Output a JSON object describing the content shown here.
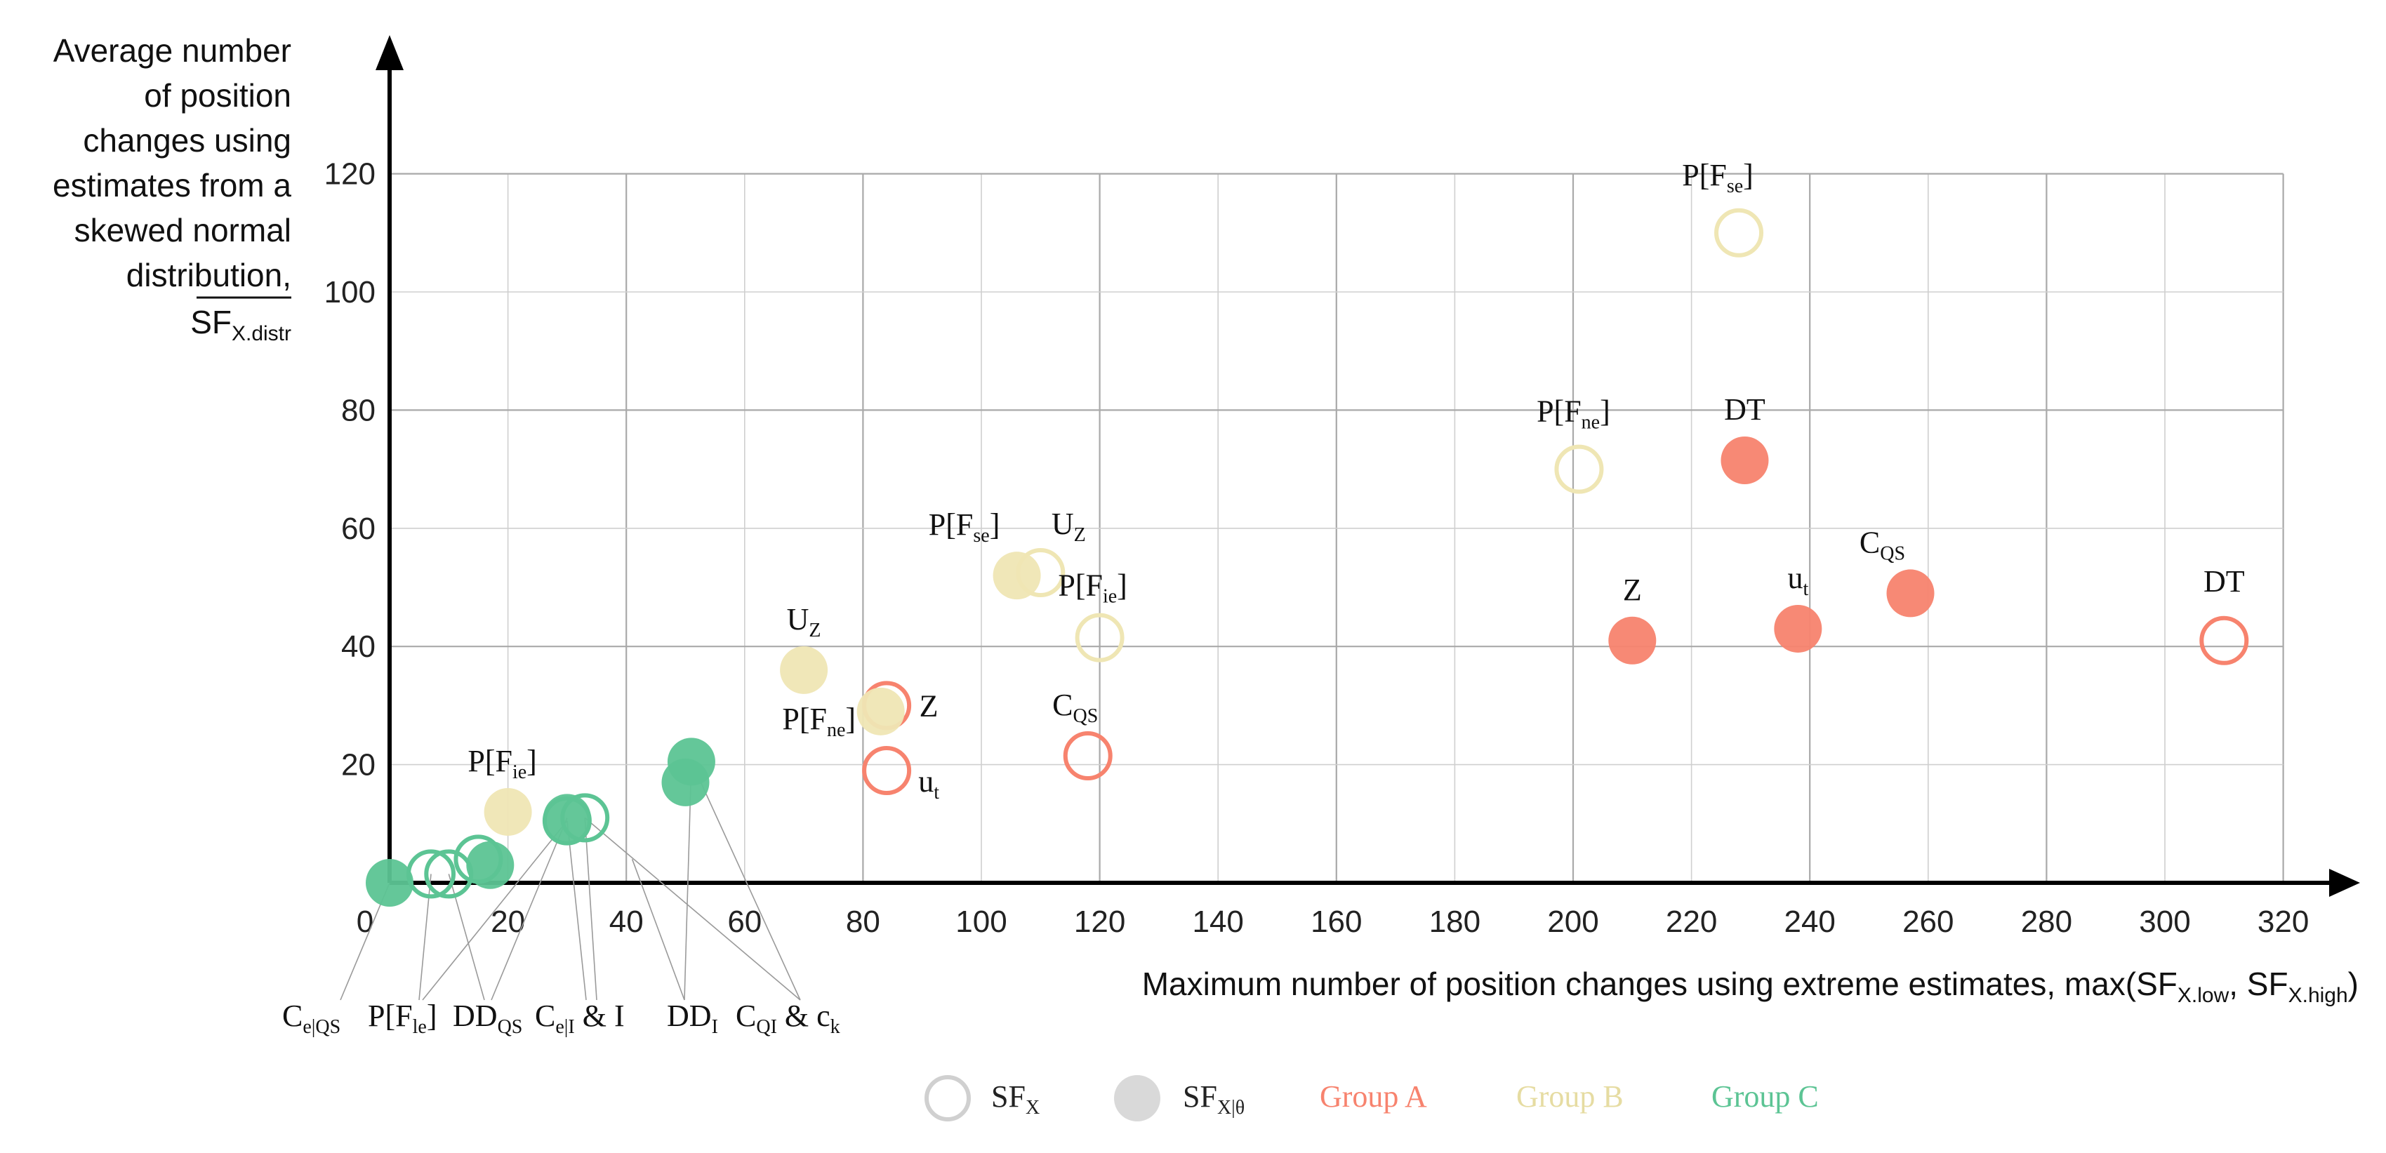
{
  "colors": {
    "group_a": "#F7836E",
    "group_b": "#EFE6B4",
    "group_c": "#5CC494",
    "legend_marker": "#D0D0D0",
    "grid": "#CFCFCF",
    "axis": "#000000",
    "leader": "#9A9A9A"
  },
  "chart_data": {
    "type": "scatter",
    "x_axis": {
      "label_main": "Maximum number of position changes using extreme estimates, max(SF",
      "label_sub1": "X.low",
      "label_sep": ", SF",
      "label_sub2": "X.high",
      "label_end": ")",
      "range": [
        0,
        320
      ],
      "ticks": [
        "0",
        "20",
        "40",
        "60",
        "80",
        "100",
        "120",
        "140",
        "160",
        "180",
        "200",
        "220",
        "240",
        "260",
        "280",
        "300",
        "320"
      ]
    },
    "y_axis": {
      "label_lines": [
        "Average number",
        "of position",
        "changes using",
        "estimates from a",
        "skewed normal",
        "distribution,"
      ],
      "label_symbol": "SF",
      "label_symbol_sub": "X.distr",
      "range": [
        0,
        120
      ],
      "ticks": [
        "20",
        "40",
        "60",
        "80",
        "100",
        "120"
      ]
    },
    "grid": true,
    "series": [
      {
        "name": "Group A",
        "points": [
          {
            "x": 310,
            "y": 41,
            "marker": "open",
            "label": "DT",
            "sub": ""
          },
          {
            "x": 229,
            "y": 71.5,
            "marker": "filled",
            "label": "DT",
            "sub": ""
          },
          {
            "x": 257,
            "y": 49,
            "marker": "filled",
            "label": "C",
            "sub": "QS"
          },
          {
            "x": 238,
            "y": 43,
            "marker": "filled",
            "label": "u",
            "sub": "t"
          },
          {
            "x": 210,
            "y": 41,
            "marker": "filled",
            "label": "Z",
            "sub": ""
          },
          {
            "x": 118,
            "y": 21.5,
            "marker": "open",
            "label": "C",
            "sub": "QS"
          },
          {
            "x": 84,
            "y": 30,
            "marker": "open",
            "label": "Z",
            "sub": ""
          },
          {
            "x": 84,
            "y": 19,
            "marker": "open",
            "label": "u",
            "sub": "t"
          }
        ]
      },
      {
        "name": "Group B",
        "points": [
          {
            "x": 228,
            "y": 110,
            "marker": "open",
            "label": "P[F",
            "sub": "se",
            "suffix": "]"
          },
          {
            "x": 201,
            "y": 70,
            "marker": "open",
            "label": "P[F",
            "sub": "ne",
            "suffix": "]"
          },
          {
            "x": 120,
            "y": 41.5,
            "marker": "open",
            "label": "P[F",
            "sub": "ie",
            "suffix": "]"
          },
          {
            "x": 110,
            "y": 52.5,
            "marker": "open",
            "label": "U",
            "sub": "Z"
          },
          {
            "x": 106,
            "y": 52,
            "marker": "filled",
            "label": "P[F",
            "sub": "se",
            "suffix": "]"
          },
          {
            "x": 70,
            "y": 36,
            "marker": "filled",
            "label": "U",
            "sub": "Z"
          },
          {
            "x": 83,
            "y": 29,
            "marker": "filled",
            "label": "P[F",
            "sub": "ne",
            "suffix": "]"
          },
          {
            "x": 20,
            "y": 12,
            "marker": "filled",
            "label": "P[F",
            "sub": "ie",
            "suffix": "]"
          }
        ]
      },
      {
        "name": "Group C",
        "points": [
          {
            "x": 0,
            "y": 0,
            "marker": "filled"
          },
          {
            "x": 7,
            "y": 1.5,
            "marker": "open"
          },
          {
            "x": 10,
            "y": 1.5,
            "marker": "open"
          },
          {
            "x": 15,
            "y": 4,
            "marker": "open"
          },
          {
            "x": 17,
            "y": 3,
            "marker": "filled"
          },
          {
            "x": 30,
            "y": 10.5,
            "marker": "open"
          },
          {
            "x": 33,
            "y": 11,
            "marker": "open"
          },
          {
            "x": 30,
            "y": 11,
            "marker": "filled"
          },
          {
            "x": 50,
            "y": 17,
            "marker": "filled"
          },
          {
            "x": 51,
            "y": 20.5,
            "marker": "filled"
          }
        ]
      }
    ],
    "callout_labels": [
      {
        "text": "C",
        "sub": "e|QS",
        "suffix": ""
      },
      {
        "text": "P[F",
        "sub": "le",
        "suffix": "]"
      },
      {
        "text": "DD",
        "sub": "QS",
        "suffix": ""
      },
      {
        "text": "C",
        "sub": "e|I",
        "suffix": " & I"
      },
      {
        "text": "DD",
        "sub": "I",
        "suffix": ""
      },
      {
        "text": "C",
        "sub": "QI",
        "suffix": " & c"
      },
      {
        "text": "",
        "sub": "k",
        "suffix": ""
      }
    ],
    "legend": [
      {
        "marker": "open",
        "text": "SF",
        "sub": "X"
      },
      {
        "marker": "filled",
        "text": "SF",
        "sub": "X|θ"
      },
      {
        "text": "Group A"
      },
      {
        "text": "Group B"
      },
      {
        "text": "Group C"
      }
    ]
  }
}
